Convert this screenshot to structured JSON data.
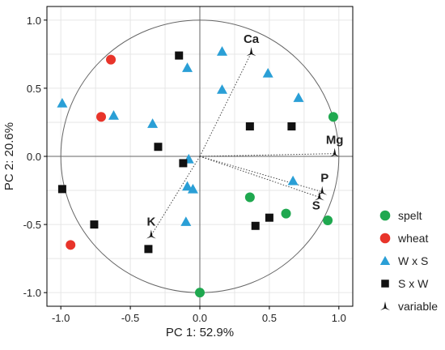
{
  "chart_data": {
    "type": "scatter",
    "xlabel": "PC 1: 52.9%",
    "ylabel": "PC 2: 20.6%",
    "xlim": [
      -1.1,
      1.1
    ],
    "ylim": [
      -1.1,
      1.1
    ],
    "xticks": [
      "-1.0",
      "-0.5",
      "0.0",
      "0.5",
      "1.0"
    ],
    "yticks": [
      "1.0",
      "0.5",
      "0.0",
      "-0.5",
      "-1.0"
    ],
    "xtick_values": [
      -1.0,
      -0.5,
      0.0,
      0.5,
      1.0
    ],
    "ytick_values": [
      1.0,
      0.5,
      0.0,
      -0.5,
      -1.0
    ],
    "grid": true,
    "unit_circle": true,
    "legend_position": "right",
    "series": [
      {
        "name": "spelt",
        "marker": "circle",
        "color": "#1fa84f",
        "points": [
          [
            0.96,
            0.29
          ],
          [
            0.36,
            -0.3
          ],
          [
            0.62,
            -0.42
          ],
          [
            0.92,
            -0.47
          ],
          [
            0.0,
            -1.0
          ]
        ]
      },
      {
        "name": "wheat",
        "marker": "circle",
        "color": "#e8342a",
        "points": [
          [
            -0.64,
            0.71
          ],
          [
            -0.71,
            0.29
          ],
          [
            -0.93,
            -0.65
          ]
        ]
      },
      {
        "name": "W x S",
        "marker": "triangle",
        "color": "#2a9fd6",
        "points": [
          [
            -0.99,
            0.39
          ],
          [
            -0.62,
            0.3
          ],
          [
            -0.34,
            0.24
          ],
          [
            -0.09,
            0.65
          ],
          [
            0.16,
            0.77
          ],
          [
            0.16,
            0.49
          ],
          [
            0.49,
            0.61
          ],
          [
            0.71,
            0.43
          ],
          [
            -0.08,
            -0.02
          ],
          [
            -0.09,
            -0.22
          ],
          [
            -0.05,
            -0.24
          ],
          [
            -0.1,
            -0.48
          ],
          [
            0.67,
            -0.18
          ]
        ]
      },
      {
        "name": "S x W",
        "marker": "square",
        "color": "#111111",
        "points": [
          [
            -0.15,
            0.74
          ],
          [
            0.36,
            0.22
          ],
          [
            0.66,
            0.22
          ],
          [
            -0.3,
            0.07
          ],
          [
            -0.12,
            -0.05
          ],
          [
            -0.99,
            -0.24
          ],
          [
            -0.76,
            -0.5
          ],
          [
            -0.37,
            -0.68
          ],
          [
            0.5,
            -0.45
          ],
          [
            0.4,
            -0.51
          ]
        ]
      }
    ],
    "variables": {
      "name": "variable",
      "color": "#111111",
      "points": [
        {
          "label": "Ca",
          "x": 0.37,
          "y": 0.76
        },
        {
          "label": "Mg",
          "x": 0.97,
          "y": 0.02
        },
        {
          "label": "P",
          "x": 0.88,
          "y": -0.26
        },
        {
          "label": "S",
          "x": 0.86,
          "y": -0.3
        },
        {
          "label": "K",
          "x": -0.35,
          "y": -0.58
        }
      ]
    }
  }
}
